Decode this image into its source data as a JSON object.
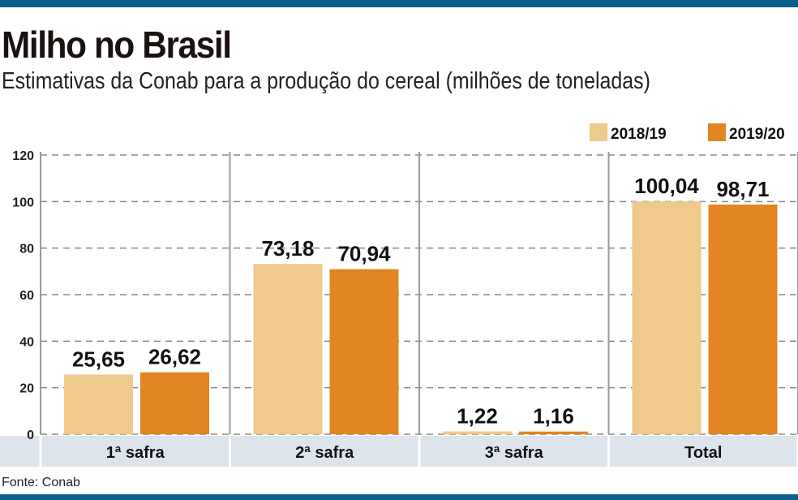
{
  "title": "Milho no Brasil",
  "subtitle": "Estimativas da Conab para a produção do cereal (milhões de toneladas)",
  "source": "Fonte: Conab",
  "chart_data": {
    "type": "bar",
    "categories": [
      "1ª safra",
      "2ª safra",
      "3ª safra",
      "Total"
    ],
    "series": [
      {
        "name": "2018/19",
        "values": [
          25.65,
          73.18,
          1.22,
          100.04
        ],
        "labels": [
          "25,65",
          "73,18",
          "1,22",
          "100,04"
        ],
        "color": "#f0c98c"
      },
      {
        "name": "2019/20",
        "values": [
          26.62,
          70.94,
          1.16,
          98.71
        ],
        "labels": [
          "26,62",
          "70,94",
          "1,16",
          "98,71"
        ],
        "color": "#e38520"
      }
    ],
    "ylim": [
      0,
      120
    ],
    "yticks": [
      0,
      20,
      40,
      60,
      80,
      100,
      120
    ],
    "grid": true,
    "legend": "top-right"
  }
}
